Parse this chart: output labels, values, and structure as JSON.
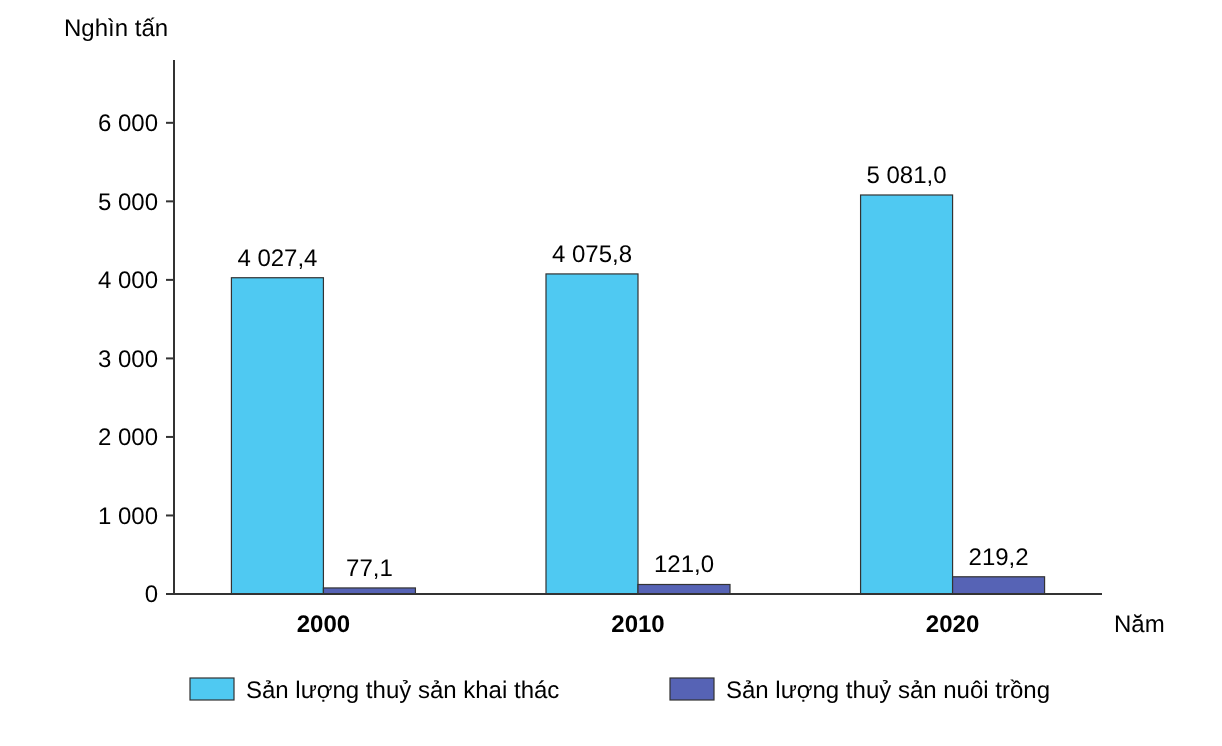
{
  "chart_data": {
    "type": "bar",
    "ylabel": "Nghìn tấn",
    "xlabel": "Năm",
    "categories": [
      "2000",
      "2010",
      "2020"
    ],
    "series": [
      {
        "name": "Sản lượng thuỷ sản khai thác",
        "color": "#4fc9f2",
        "values": [
          4027.4,
          4075.8,
          5081.0
        ],
        "value_labels": [
          "4 027,4",
          "4 075,8",
          "5 081,0"
        ]
      },
      {
        "name": "Sản lượng thuỷ sản nuôi trồng",
        "color": "#5663b5",
        "values": [
          77.1,
          121.0,
          219.2
        ],
        "value_labels": [
          "77,1",
          "121,0",
          "219,2"
        ]
      }
    ],
    "ylim": [
      0,
      6800
    ],
    "yticks": [
      0,
      {
        "value": 1000,
        "label": "1 000"
      },
      {
        "value": 2000,
        "label": "2 000"
      },
      {
        "value": 3000,
        "label": "3 000"
      },
      {
        "value": 4000,
        "label": "4 000"
      },
      {
        "value": 5000,
        "label": "5 000"
      },
      {
        "value": 6000,
        "label": "6 000"
      }
    ],
    "grid": false,
    "legend": "bottom"
  }
}
